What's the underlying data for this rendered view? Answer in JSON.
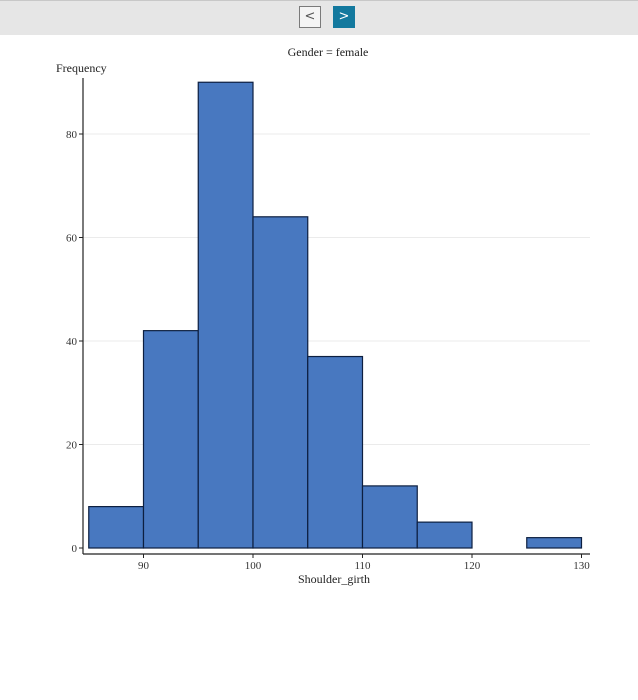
{
  "toolbar": {
    "prev_label": "<",
    "next_label": ">"
  },
  "chart": {
    "title": "Gender = female",
    "ylabel": "Frequency",
    "xlabel": "Shoulder_girth"
  },
  "colors": {
    "bar_fill": "#4878c0",
    "bar_stroke": "#0d1f40",
    "next_button": "#13799e",
    "toolbar_bg": "#e6e6e6"
  },
  "chart_data": {
    "type": "bar",
    "title": "Gender = female",
    "xlabel": "Shoulder_girth",
    "ylabel": "Frequency",
    "bins": [
      [
        85,
        90
      ],
      [
        90,
        95
      ],
      [
        95,
        100
      ],
      [
        100,
        105
      ],
      [
        105,
        110
      ],
      [
        110,
        115
      ],
      [
        115,
        120
      ],
      [
        120,
        125
      ],
      [
        125,
        130
      ]
    ],
    "categories": [
      "85-90",
      "90-95",
      "95-100",
      "100-105",
      "105-110",
      "110-115",
      "115-120",
      "120-125",
      "125-130"
    ],
    "values": [
      8,
      42,
      90,
      64,
      37,
      12,
      5,
      0,
      2
    ],
    "x_ticks": [
      90,
      100,
      110,
      120,
      130
    ],
    "y_ticks": [
      0,
      20,
      40,
      60,
      80
    ],
    "xlim": [
      84,
      131
    ],
    "ylim": [
      0,
      91
    ],
    "grid": "horizontal",
    "legend": "none"
  }
}
